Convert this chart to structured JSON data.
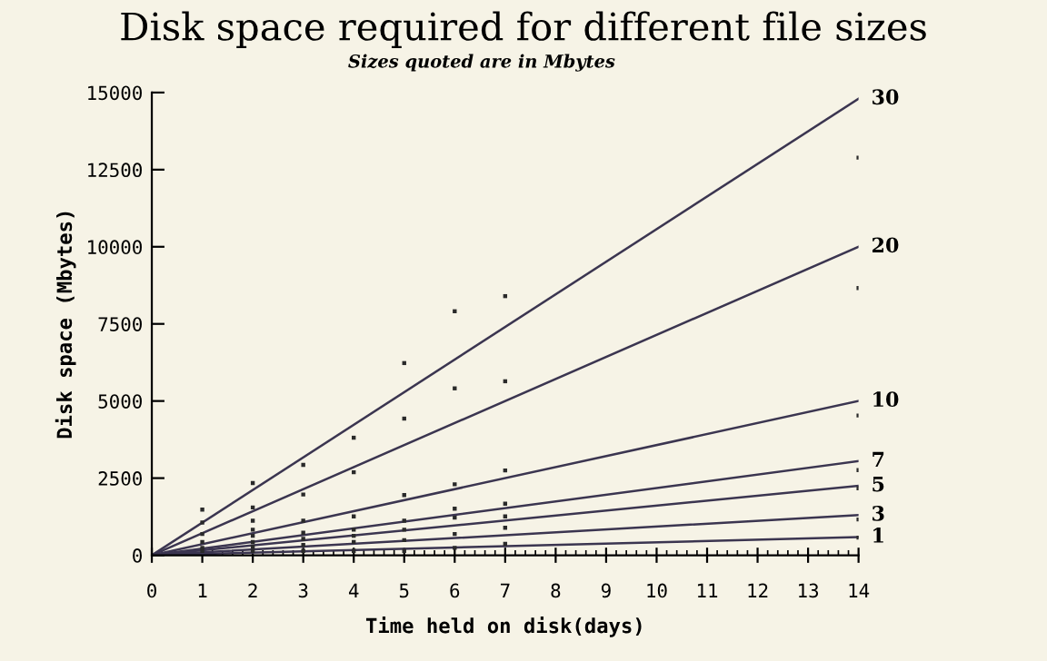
{
  "chart_data": {
    "type": "line",
    "title": "Disk space required for different file sizes",
    "subtitle": "Sizes quoted are in Mbytes",
    "xlabel": "Time held on disk(days)",
    "ylabel": "Disk space (Mbytes)",
    "xlim": [
      0,
      14
    ],
    "ylim": [
      0,
      15000
    ],
    "xticks": [
      0,
      1,
      2,
      3,
      4,
      5,
      6,
      7,
      8,
      9,
      10,
      11,
      12,
      13,
      14
    ],
    "yticks": [
      0,
      2500,
      5000,
      7500,
      10000,
      12500,
      15000
    ],
    "grid": false,
    "legend": false,
    "marker": "none",
    "line_style": "solid",
    "series": [
      {
        "name": "30",
        "color": "#3b3550",
        "x": [
          0,
          14
        ],
        "values": [
          0,
          14800
        ]
      },
      {
        "name": "20",
        "color": "#3b3550",
        "x": [
          0,
          14
        ],
        "values": [
          0,
          10000
        ]
      },
      {
        "name": "10",
        "color": "#3b3550",
        "x": [
          0,
          14
        ],
        "values": [
          0,
          5000
        ]
      },
      {
        "name": "7",
        "color": "#3b3550",
        "x": [
          0,
          14
        ],
        "values": [
          0,
          3050
        ]
      },
      {
        "name": "5",
        "color": "#3b3550",
        "x": [
          0,
          14
        ],
        "values": [
          0,
          2250
        ]
      },
      {
        "name": "3",
        "color": "#3b3550",
        "x": [
          0,
          14
        ],
        "values": [
          0,
          1300
        ]
      },
      {
        "name": "1",
        "color": "#3b3550",
        "x": [
          0,
          14
        ],
        "values": [
          0,
          590
        ]
      },
      {
        "type": "scatter",
        "marker": "square",
        "color": "#2a2a2a",
        "x": [
          1,
          1,
          1,
          1,
          1,
          1,
          2,
          2,
          2,
          2,
          2,
          2,
          2,
          2,
          3,
          3,
          3,
          3,
          3,
          3,
          3,
          4,
          4,
          4,
          4,
          4,
          4,
          4,
          5,
          5,
          5,
          5,
          5,
          5,
          5,
          6,
          6,
          6,
          6,
          6,
          6,
          6,
          7,
          7,
          7,
          7,
          7,
          7,
          7,
          14,
          14,
          14,
          14,
          14,
          14,
          14
        ],
        "values": [
          1480,
          1060,
          690,
          430,
          240,
          140,
          2340,
          1550,
          1120,
          830,
          630,
          430,
          280,
          140,
          2930,
          1970,
          1120,
          730,
          530,
          330,
          140,
          3810,
          2690,
          1260,
          830,
          630,
          430,
          140,
          6230,
          4430,
          1950,
          1120,
          830,
          490,
          140,
          7910,
          5410,
          2300,
          1510,
          1220,
          690,
          240,
          8400,
          5640,
          2750,
          1670,
          1260,
          890,
          370,
          12890,
          8660,
          4530,
          2760,
          2170,
          1160,
          570
        ]
      }
    ]
  }
}
